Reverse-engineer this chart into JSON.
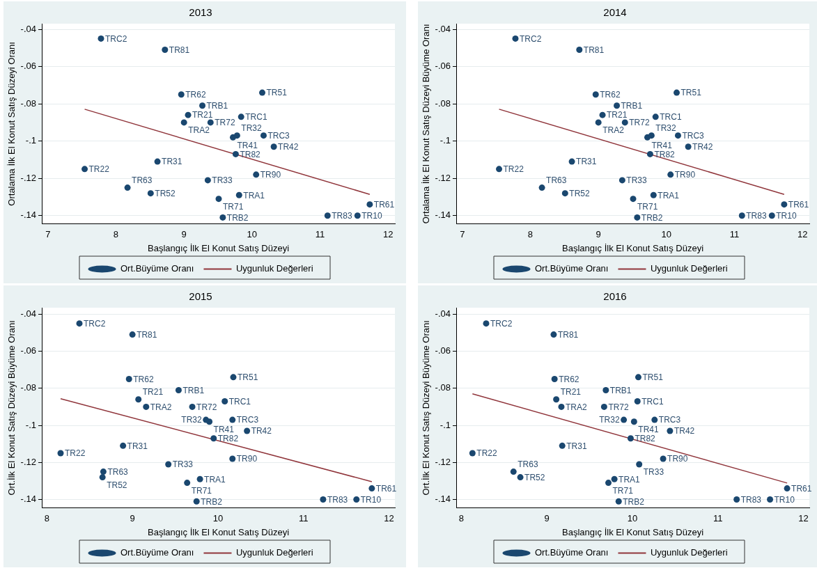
{
  "chart_data": [
    {
      "type": "scatter",
      "title": "2013",
      "xlabel": "Başlangıç İlk El Konut Satış Düzeyi",
      "ylabel": "Ortalama İlk El Konut Satış Düzeyi Oranı",
      "xlim": [
        6.91,
        12.1
      ],
      "xticks": [
        7,
        8,
        9,
        10,
        11,
        12
      ],
      "ylim": [
        -0.1445,
        -0.037
      ],
      "yticks": [
        {
          "value": -0.14,
          "label": "-.14"
        },
        {
          "value": -0.12,
          "label": "-.12"
        },
        {
          "value": -0.1,
          "label": "-.1"
        },
        {
          "value": -0.08,
          "label": "-.08"
        },
        {
          "value": -0.06,
          "label": "-.06"
        },
        {
          "value": -0.04,
          "label": "-.04"
        }
      ],
      "grid": "y",
      "legend": "bottom",
      "marker": "circle",
      "series": [
        {
          "name": "Ort.Büyüme Oranı",
          "type": "scatter",
          "color": "#1a476f",
          "x": [
            7.78,
            8.72,
            8.96,
            10.15,
            9.27,
            9.06,
            9.84,
            9.0,
            9.39,
            9.72,
            9.78,
            10.17,
            10.32,
            9.76,
            8.61,
            7.54,
            10.06,
            9.35,
            8.17,
            8.51,
            9.81,
            9.51,
            11.73,
            11.11,
            11.55,
            9.57
          ],
          "values": [
            -0.045,
            -0.051,
            -0.075,
            -0.074,
            -0.081,
            -0.086,
            -0.087,
            -0.09,
            -0.09,
            -0.098,
            -0.097,
            -0.097,
            -0.103,
            -0.107,
            -0.111,
            -0.115,
            -0.118,
            -0.121,
            -0.125,
            -0.128,
            -0.129,
            -0.131,
            -0.134,
            -0.14,
            -0.14,
            -0.141
          ]
        },
        {
          "name": "Uygunluk Değerleri",
          "type": "line",
          "marker": "none",
          "color": "#90353b",
          "x": [
            7.54,
            11.73
          ],
          "values": [
            -0.0829,
            -0.1286
          ]
        }
      ],
      "annotations": [
        {
          "text": "TRC2",
          "x": 7.78,
          "y": -0.045
        },
        {
          "text": "TR81",
          "x": 8.72,
          "y": -0.051
        },
        {
          "text": "TR62",
          "x": 8.96,
          "y": -0.075
        },
        {
          "text": "TR51",
          "x": 10.15,
          "y": -0.074
        },
        {
          "text": "TRB1",
          "x": 9.27,
          "y": -0.081
        },
        {
          "text": "TR21",
          "x": 9.06,
          "y": -0.086
        },
        {
          "text": "TRC1",
          "x": 9.84,
          "y": -0.087
        },
        {
          "text": "TRA2",
          "x": 9.0,
          "y": -0.09
        },
        {
          "text": "TR72",
          "x": 9.39,
          "y": -0.09
        },
        {
          "text": "TR41",
          "x": 9.72,
          "y": -0.098
        },
        {
          "text": "TR32",
          "x": 9.78,
          "y": -0.097
        },
        {
          "text": "TRC3",
          "x": 10.17,
          "y": -0.097
        },
        {
          "text": "TR42",
          "x": 10.32,
          "y": -0.103
        },
        {
          "text": "TR82",
          "x": 9.76,
          "y": -0.107
        },
        {
          "text": "TR31",
          "x": 8.61,
          "y": -0.111
        },
        {
          "text": "TR22",
          "x": 7.54,
          "y": -0.115
        },
        {
          "text": "TR90",
          "x": 10.06,
          "y": -0.118
        },
        {
          "text": "TR33",
          "x": 9.35,
          "y": -0.121
        },
        {
          "text": "TR63",
          "x": 8.17,
          "y": -0.125
        },
        {
          "text": "TR52",
          "x": 8.51,
          "y": -0.128
        },
        {
          "text": "TRA1",
          "x": 9.81,
          "y": -0.129
        },
        {
          "text": "TR71",
          "x": 9.51,
          "y": -0.131
        },
        {
          "text": "TR61",
          "x": 11.73,
          "y": -0.134
        },
        {
          "text": "TR83",
          "x": 11.11,
          "y": -0.14
        },
        {
          "text": "TR10",
          "x": 11.55,
          "y": -0.14
        },
        {
          "text": "TRB2",
          "x": 9.57,
          "y": -0.141
        }
      ]
    },
    {
      "type": "scatter",
      "title": "2014",
      "xlabel": "Başlangıç İlk El Konut Satış Düzeyi",
      "ylabel": "Ortalama İlk El Konut Satış Düzeyi Büyüme Oranı",
      "xlim": [
        6.91,
        12.1
      ],
      "xticks": [
        7,
        8,
        9,
        10,
        11,
        12
      ],
      "ylim": [
        -0.1445,
        -0.037
      ],
      "yticks": [
        {
          "value": -0.14,
          "label": "-.14"
        },
        {
          "value": -0.12,
          "label": "-.12"
        },
        {
          "value": -0.1,
          "label": "-.1"
        },
        {
          "value": -0.08,
          "label": "-.08"
        },
        {
          "value": -0.06,
          "label": "-.06"
        },
        {
          "value": -0.04,
          "label": "-.04"
        }
      ],
      "grid": "y",
      "legend": "bottom",
      "marker": "circle",
      "series": [
        {
          "name": "Ort.Büyüme Oranı",
          "type": "scatter",
          "color": "#1a476f",
          "x": [
            7.78,
            8.72,
            8.96,
            10.15,
            9.27,
            9.06,
            9.84,
            9.0,
            9.39,
            9.72,
            9.78,
            10.17,
            10.32,
            9.76,
            8.61,
            7.54,
            10.06,
            9.35,
            8.17,
            8.51,
            9.81,
            9.51,
            11.73,
            11.11,
            11.55,
            9.57
          ],
          "values": [
            -0.045,
            -0.051,
            -0.075,
            -0.074,
            -0.081,
            -0.086,
            -0.087,
            -0.09,
            -0.09,
            -0.098,
            -0.097,
            -0.097,
            -0.103,
            -0.107,
            -0.111,
            -0.115,
            -0.118,
            -0.121,
            -0.125,
            -0.128,
            -0.129,
            -0.131,
            -0.134,
            -0.14,
            -0.14,
            -0.141
          ]
        },
        {
          "name": "Uygunluk Değerleri",
          "type": "line",
          "marker": "none",
          "color": "#90353b",
          "x": [
            7.54,
            11.73
          ],
          "values": [
            -0.0829,
            -0.1286
          ]
        }
      ],
      "annotations": [
        {
          "text": "TRC2",
          "x": 7.78,
          "y": -0.045
        },
        {
          "text": "TR81",
          "x": 8.72,
          "y": -0.051
        },
        {
          "text": "TR62",
          "x": 8.96,
          "y": -0.075
        },
        {
          "text": "TR51",
          "x": 10.15,
          "y": -0.074
        },
        {
          "text": "TRB1",
          "x": 9.27,
          "y": -0.081
        },
        {
          "text": "TR21",
          "x": 9.06,
          "y": -0.086
        },
        {
          "text": "TRC1",
          "x": 9.84,
          "y": -0.087
        },
        {
          "text": "TRA2",
          "x": 9.0,
          "y": -0.09
        },
        {
          "text": "TR72",
          "x": 9.39,
          "y": -0.09
        },
        {
          "text": "TR41",
          "x": 9.72,
          "y": -0.098
        },
        {
          "text": "TR32",
          "x": 9.78,
          "y": -0.097
        },
        {
          "text": "TRC3",
          "x": 10.17,
          "y": -0.097
        },
        {
          "text": "TR42",
          "x": 10.32,
          "y": -0.103
        },
        {
          "text": "TR82",
          "x": 9.76,
          "y": -0.107
        },
        {
          "text": "TR31",
          "x": 8.61,
          "y": -0.111
        },
        {
          "text": "TR22",
          "x": 7.54,
          "y": -0.115
        },
        {
          "text": "TR90",
          "x": 10.06,
          "y": -0.118
        },
        {
          "text": "TR33",
          "x": 9.35,
          "y": -0.121
        },
        {
          "text": "TR63",
          "x": 8.17,
          "y": -0.125
        },
        {
          "text": "TR52",
          "x": 8.51,
          "y": -0.128
        },
        {
          "text": "TRA1",
          "x": 9.81,
          "y": -0.129
        },
        {
          "text": "TR71",
          "x": 9.51,
          "y": -0.131
        },
        {
          "text": "TR61",
          "x": 11.73,
          "y": -0.134
        },
        {
          "text": "TR83",
          "x": 11.11,
          "y": -0.14
        },
        {
          "text": "TR10",
          "x": 11.55,
          "y": -0.14
        },
        {
          "text": "TRB2",
          "x": 9.57,
          "y": -0.141
        }
      ]
    },
    {
      "type": "scatter",
      "title": "2015",
      "xlabel": "Başlangıç İlk El Konut Satış Düzeyi",
      "ylabel": "Ort.İlk El Konut Satış Düzeyi Büyüme Oranı",
      "xlim": [
        7.94,
        12.07
      ],
      "xticks": [
        8,
        9,
        10,
        11,
        12
      ],
      "ylim": [
        -0.1446,
        -0.0365
      ],
      "yticks": [
        {
          "value": -0.14,
          "label": "-.14"
        },
        {
          "value": -0.12,
          "label": "-.12"
        },
        {
          "value": -0.1,
          "label": "-.1"
        },
        {
          "value": -0.08,
          "label": "-.08"
        },
        {
          "value": -0.06,
          "label": "-.06"
        },
        {
          "value": -0.04,
          "label": "-.04"
        }
      ],
      "grid": "y",
      "legend": "bottom",
      "marker": "circle",
      "series": [
        {
          "name": "Ort.Büyüme Oranı",
          "type": "scatter",
          "color": "#1a476f",
          "x": [
            8.38,
            9.0,
            8.96,
            10.18,
            9.54,
            9.07,
            10.08,
            9.16,
            9.7,
            9.9,
            9.86,
            10.17,
            10.34,
            9.95,
            8.89,
            8.16,
            10.17,
            9.42,
            8.66,
            8.65,
            9.79,
            9.64,
            11.8,
            11.23,
            11.62,
            9.75
          ],
          "values": [
            -0.045,
            -0.051,
            -0.075,
            -0.074,
            -0.081,
            -0.086,
            -0.087,
            -0.09,
            -0.09,
            -0.098,
            -0.097,
            -0.097,
            -0.103,
            -0.107,
            -0.111,
            -0.115,
            -0.118,
            -0.121,
            -0.125,
            -0.128,
            -0.129,
            -0.131,
            -0.134,
            -0.14,
            -0.14,
            -0.141
          ]
        },
        {
          "name": "Uygunluk Değerleri",
          "type": "line",
          "marker": "none",
          "color": "#90353b",
          "x": [
            8.16,
            11.8
          ],
          "values": [
            -0.0856,
            -0.1304
          ]
        }
      ],
      "annotations": [
        {
          "text": "TRC2",
          "x": 8.38,
          "y": -0.045
        },
        {
          "text": "TR81",
          "x": 9.0,
          "y": -0.051
        },
        {
          "text": "TR62",
          "x": 8.96,
          "y": -0.075
        },
        {
          "text": "TR51",
          "x": 10.18,
          "y": -0.074
        },
        {
          "text": "TRB1",
          "x": 9.54,
          "y": -0.081
        },
        {
          "text": "TR21",
          "x": 9.07,
          "y": -0.086
        },
        {
          "text": "TRC1",
          "x": 10.08,
          "y": -0.087
        },
        {
          "text": "TRA2",
          "x": 9.16,
          "y": -0.09
        },
        {
          "text": "TR72",
          "x": 9.7,
          "y": -0.09
        },
        {
          "text": "TR41",
          "x": 9.9,
          "y": -0.098
        },
        {
          "text": "TR32",
          "x": 9.86,
          "y": -0.097
        },
        {
          "text": "TRC3",
          "x": 10.17,
          "y": -0.097
        },
        {
          "text": "TR42",
          "x": 10.34,
          "y": -0.103
        },
        {
          "text": "TR82",
          "x": 9.95,
          "y": -0.107
        },
        {
          "text": "TR31",
          "x": 8.89,
          "y": -0.111
        },
        {
          "text": "TR22",
          "x": 8.16,
          "y": -0.115
        },
        {
          "text": "TR90",
          "x": 10.17,
          "y": -0.118
        },
        {
          "text": "TR33",
          "x": 9.42,
          "y": -0.121
        },
        {
          "text": "TR63",
          "x": 8.66,
          "y": -0.125
        },
        {
          "text": "TR52",
          "x": 8.65,
          "y": -0.128
        },
        {
          "text": "TRA1",
          "x": 9.79,
          "y": -0.129
        },
        {
          "text": "TR71",
          "x": 9.64,
          "y": -0.131
        },
        {
          "text": "TR61",
          "x": 11.8,
          "y": -0.134
        },
        {
          "text": "TR83",
          "x": 11.23,
          "y": -0.14
        },
        {
          "text": "TR10",
          "x": 11.62,
          "y": -0.14
        },
        {
          "text": "TRB2",
          "x": 9.75,
          "y": -0.141
        }
      ]
    },
    {
      "type": "scatter",
      "title": "2016",
      "xlabel": "Başlangıç İlk El Konut Satış Düzeyi",
      "ylabel": "Ort.İlk El Konut Satış Düzeyi Büyüme Oranı",
      "xlim": [
        7.94,
        12.07
      ],
      "xticks": [
        8,
        9,
        10,
        11,
        12
      ],
      "ylim": [
        -0.1446,
        -0.0365
      ],
      "yticks": [
        {
          "value": -0.14,
          "label": "-.14"
        },
        {
          "value": -0.12,
          "label": "-.12"
        },
        {
          "value": -0.1,
          "label": "-.1"
        },
        {
          "value": -0.08,
          "label": "-.08"
        },
        {
          "value": -0.06,
          "label": "-.06"
        },
        {
          "value": -0.04,
          "label": "-.04"
        }
      ],
      "grid": "y",
      "legend": "bottom",
      "marker": "circle",
      "series": [
        {
          "name": "Ort.Büyüme Oranı",
          "type": "scatter",
          "color": "#1a476f",
          "x": [
            8.29,
            9.08,
            9.09,
            10.07,
            9.69,
            9.11,
            10.06,
            9.17,
            9.67,
            10.02,
            9.9,
            10.26,
            10.44,
            9.98,
            9.18,
            8.13,
            10.36,
            10.08,
            8.61,
            8.69,
            9.79,
            9.72,
            11.81,
            11.22,
            11.61,
            9.84
          ],
          "values": [
            -0.045,
            -0.051,
            -0.075,
            -0.074,
            -0.081,
            -0.086,
            -0.087,
            -0.09,
            -0.09,
            -0.098,
            -0.097,
            -0.097,
            -0.103,
            -0.107,
            -0.111,
            -0.115,
            -0.118,
            -0.121,
            -0.125,
            -0.128,
            -0.129,
            -0.131,
            -0.134,
            -0.14,
            -0.14,
            -0.141
          ]
        },
        {
          "name": "Uygunluk Değerleri",
          "type": "line",
          "marker": "none",
          "color": "#90353b",
          "x": [
            8.13,
            11.81
          ],
          "values": [
            -0.083,
            -0.1311
          ]
        }
      ],
      "annotations": [
        {
          "text": "TRC2",
          "x": 8.29,
          "y": -0.045
        },
        {
          "text": "TR81",
          "x": 9.08,
          "y": -0.051
        },
        {
          "text": "TR62",
          "x": 9.09,
          "y": -0.075
        },
        {
          "text": "TR51",
          "x": 10.07,
          "y": -0.074
        },
        {
          "text": "TRB1",
          "x": 9.69,
          "y": -0.081
        },
        {
          "text": "TR21",
          "x": 9.11,
          "y": -0.086
        },
        {
          "text": "TRC1",
          "x": 10.06,
          "y": -0.087
        },
        {
          "text": "TRA2",
          "x": 9.17,
          "y": -0.09
        },
        {
          "text": "TR72",
          "x": 9.67,
          "y": -0.09
        },
        {
          "text": "TR41",
          "x": 10.02,
          "y": -0.098
        },
        {
          "text": "TR32",
          "x": 9.9,
          "y": -0.097
        },
        {
          "text": "TRC3",
          "x": 10.26,
          "y": -0.097
        },
        {
          "text": "TR42",
          "x": 10.44,
          "y": -0.103
        },
        {
          "text": "TR82",
          "x": 9.98,
          "y": -0.107
        },
        {
          "text": "TR31",
          "x": 9.18,
          "y": -0.111
        },
        {
          "text": "TR22",
          "x": 8.13,
          "y": -0.115
        },
        {
          "text": "TR90",
          "x": 10.36,
          "y": -0.118
        },
        {
          "text": "TR33",
          "x": 10.08,
          "y": -0.121
        },
        {
          "text": "TR63",
          "x": 8.61,
          "y": -0.125
        },
        {
          "text": "TR52",
          "x": 8.69,
          "y": -0.128
        },
        {
          "text": "TRA1",
          "x": 9.79,
          "y": -0.129
        },
        {
          "text": "TR71",
          "x": 9.72,
          "y": -0.131
        },
        {
          "text": "TR61",
          "x": 11.81,
          "y": -0.134
        },
        {
          "text": "TR83",
          "x": 11.22,
          "y": -0.14
        },
        {
          "text": "TR10",
          "x": 11.61,
          "y": -0.14
        },
        {
          "text": "TRB2",
          "x": 9.84,
          "y": -0.141
        }
      ]
    }
  ]
}
